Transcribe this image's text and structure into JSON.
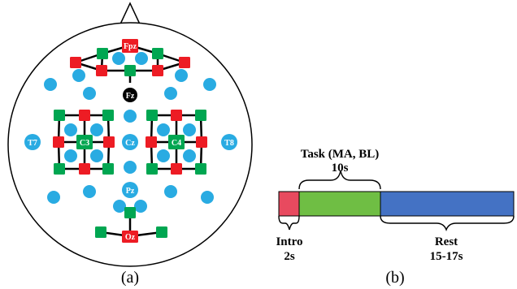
{
  "panel_a": {
    "caption": "(a)",
    "electrodes": {
      "Fpz": "Fpz",
      "Fz": "Fz",
      "T7": "T7",
      "C3": "C3",
      "Cz": "Cz",
      "C4": "C4",
      "T8": "T8",
      "Pz": "Pz",
      "Oz": "Oz"
    },
    "colors": {
      "eeg": "#29abe2",
      "source": "#ed1c24",
      "detector": "#00a651",
      "reference": "#000000",
      "channel_line": "#000000",
      "head_outline": "#000000"
    }
  },
  "panel_b": {
    "caption": "(b)",
    "intro": {
      "name": "Intro",
      "duration": "2s",
      "color": "#e84a5f"
    },
    "task": {
      "name": "Task (MA, BL)",
      "duration": "10s",
      "color": "#6fbe44"
    },
    "rest": {
      "name": "Rest",
      "duration": "15-17s",
      "color": "#4472c4"
    }
  }
}
